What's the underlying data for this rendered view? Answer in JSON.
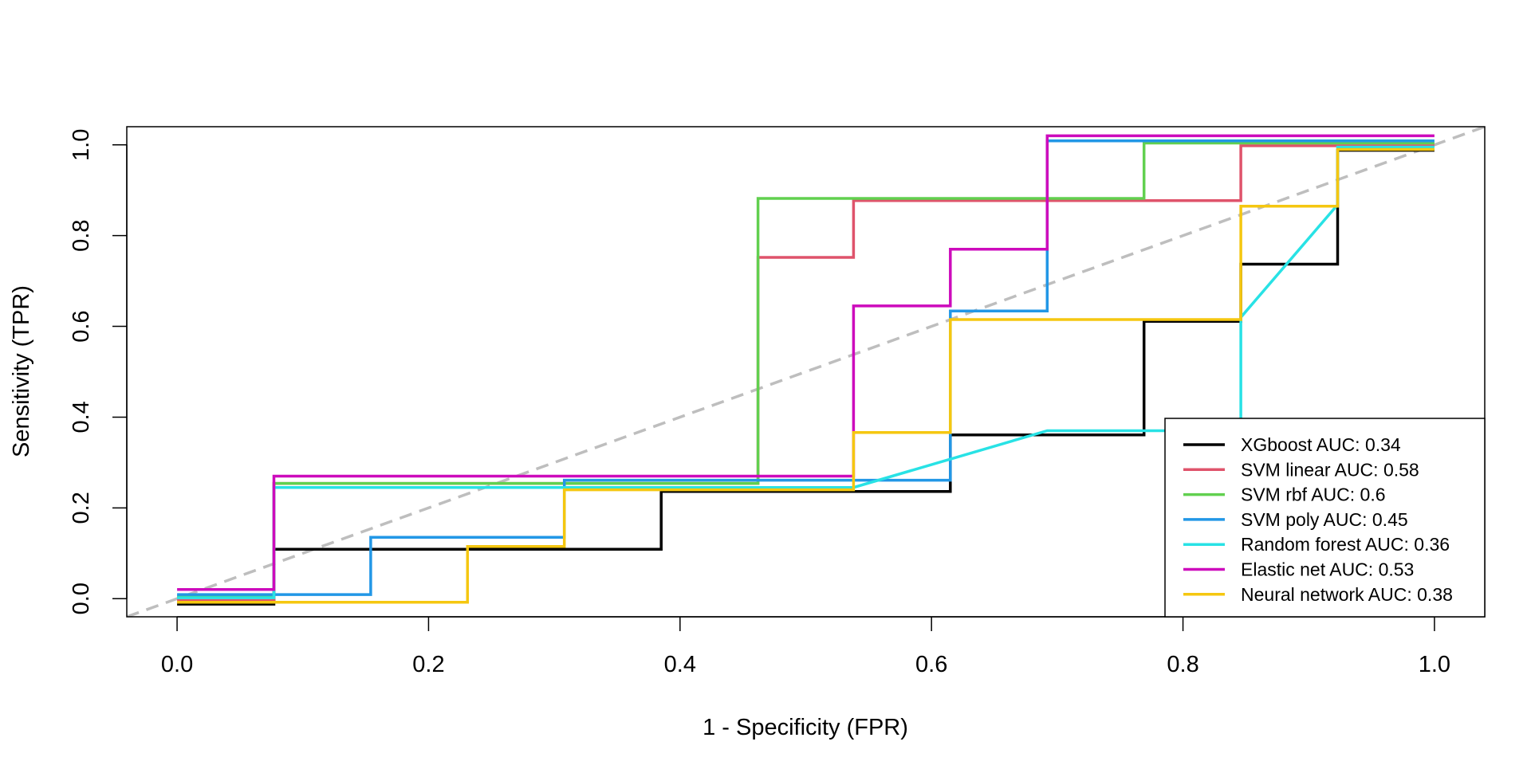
{
  "chart_data": {
    "type": "line",
    "title": "",
    "xlabel": "1 - Specificity (FPR)",
    "ylabel": "Sensitivity (TPR)",
    "xlim": [
      -0.04,
      1.04
    ],
    "ylim": [
      -0.04,
      1.04
    ],
    "xticks": [
      "0.0",
      "0.2",
      "0.4",
      "0.6",
      "0.8",
      "1.0"
    ],
    "yticks": [
      "0.0",
      "0.2",
      "0.4",
      "0.6",
      "0.8",
      "1.0"
    ],
    "grid": false,
    "legend_position": "bottom-right",
    "reference_line": {
      "style": "dashed",
      "color": "#bebebe",
      "from": [
        0,
        0
      ],
      "to": [
        1,
        1
      ]
    },
    "series": [
      {
        "name": "XGboost AUC: 0.34",
        "color": "#000000",
        "points": [
          [
            0,
            -0.012
          ],
          [
            0.077,
            -0.012
          ],
          [
            0.077,
            0.109
          ],
          [
            0.385,
            0.109
          ],
          [
            0.385,
            0.236
          ],
          [
            0.615,
            0.236
          ],
          [
            0.615,
            0.361
          ],
          [
            0.769,
            0.361
          ],
          [
            0.769,
            0.611
          ],
          [
            0.846,
            0.611
          ],
          [
            0.846,
            0.737
          ],
          [
            0.923,
            0.737
          ],
          [
            0.923,
            0.988
          ],
          [
            1,
            0.988
          ]
        ]
      },
      {
        "name": "SVM linear AUC: 0.58",
        "color": "#df536b",
        "points": [
          [
            0,
            -0.004
          ],
          [
            0.077,
            -0.004
          ],
          [
            0.077,
            0.254
          ],
          [
            0.462,
            0.254
          ],
          [
            0.462,
            0.752
          ],
          [
            0.538,
            0.752
          ],
          [
            0.538,
            0.877
          ],
          [
            0.846,
            0.877
          ],
          [
            0.846,
            0.998
          ],
          [
            1,
            0.998
          ]
        ]
      },
      {
        "name": "SVM rbf AUC: 0.6",
        "color": "#61d04f",
        "points": [
          [
            0,
            0.004
          ],
          [
            0.077,
            0.004
          ],
          [
            0.077,
            0.254
          ],
          [
            0.462,
            0.254
          ],
          [
            0.462,
            0.882
          ],
          [
            0.769,
            0.882
          ],
          [
            0.769,
            1.004
          ],
          [
            1,
            1.004
          ]
        ]
      },
      {
        "name": "SVM poly AUC: 0.45",
        "color": "#2297e6",
        "points": [
          [
            0,
            0.009
          ],
          [
            0.154,
            0.009
          ],
          [
            0.154,
            0.135
          ],
          [
            0.308,
            0.135
          ],
          [
            0.308,
            0.261
          ],
          [
            0.615,
            0.261
          ],
          [
            0.615,
            0.634
          ],
          [
            0.692,
            0.634
          ],
          [
            0.692,
            1.009
          ],
          [
            1,
            1.009
          ]
        ]
      },
      {
        "name": "Random forest AUC: 0.36",
        "color": "#28e2e5",
        "points": [
          [
            0,
            0.002
          ],
          [
            0.077,
            0.002
          ],
          [
            0.077,
            0.245
          ],
          [
            0.538,
            0.245
          ],
          [
            0.692,
            0.37
          ],
          [
            0.846,
            0.37
          ],
          [
            0.846,
            0.62
          ],
          [
            0.923,
            0.868
          ],
          [
            0.923,
            0.995
          ],
          [
            1,
            0.995
          ]
        ]
      },
      {
        "name": "Elastic net AUC: 0.53",
        "color": "#cd0bbc",
        "points": [
          [
            0,
            0.02
          ],
          [
            0.077,
            0.02
          ],
          [
            0.077,
            0.27
          ],
          [
            0.538,
            0.27
          ],
          [
            0.538,
            0.645
          ],
          [
            0.615,
            0.645
          ],
          [
            0.615,
            0.77
          ],
          [
            0.692,
            0.77
          ],
          [
            0.692,
            1.02
          ],
          [
            1,
            1.02
          ]
        ]
      },
      {
        "name": "Neural network AUC: 0.38",
        "color": "#f5c710",
        "points": [
          [
            0,
            -0.008
          ],
          [
            0.231,
            -0.008
          ],
          [
            0.231,
            0.115
          ],
          [
            0.308,
            0.115
          ],
          [
            0.308,
            0.24
          ],
          [
            0.538,
            0.24
          ],
          [
            0.538,
            0.366
          ],
          [
            0.615,
            0.366
          ],
          [
            0.615,
            0.615
          ],
          [
            0.846,
            0.615
          ],
          [
            0.846,
            0.865
          ],
          [
            0.923,
            0.865
          ],
          [
            0.923,
            0.99
          ],
          [
            1,
            0.99
          ]
        ]
      }
    ]
  }
}
